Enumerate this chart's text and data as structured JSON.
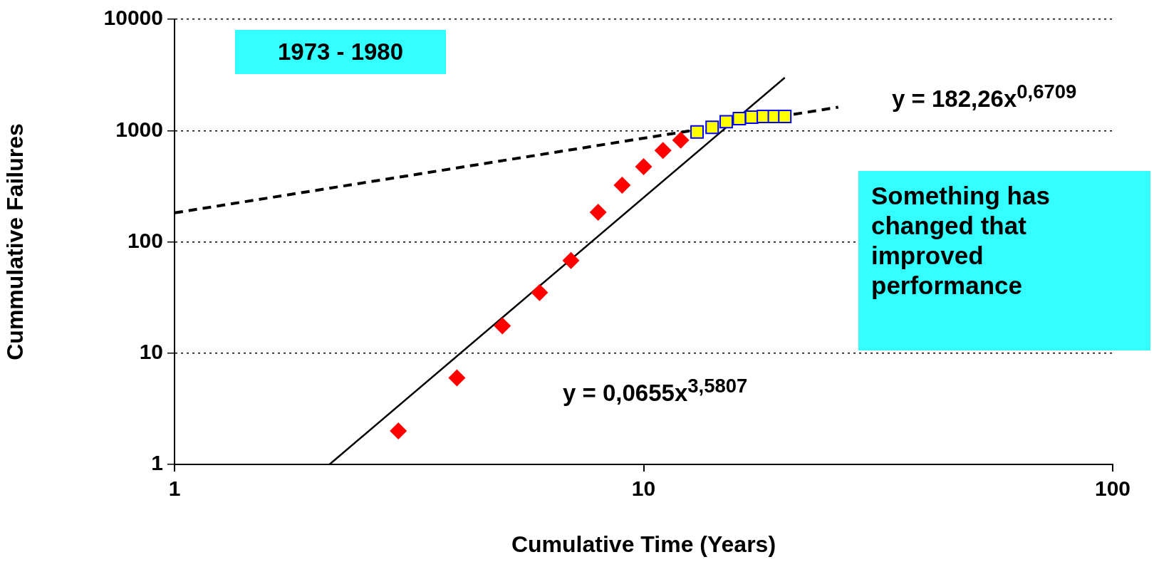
{
  "chart_data": {
    "type": "scatter",
    "xlabel": "Cumulative Time (Years)",
    "ylabel": "Cummulative Failures",
    "log": "xy",
    "xlim": [
      1,
      100
    ],
    "ylim": [
      1,
      10000
    ],
    "xticks": [
      1,
      10,
      100
    ],
    "yticks": [
      1,
      10,
      100,
      1000,
      10000
    ],
    "grid": "y",
    "legend": false,
    "series": [
      {
        "marker": "diamond",
        "color": "#ff0000",
        "x": [
          3,
          4,
          5,
          6,
          7,
          8,
          9,
          10,
          11,
          12
        ],
        "values": [
          2,
          6,
          17.6,
          35,
          68,
          184,
          323,
          473,
          662,
          820
        ]
      },
      {
        "marker": "square",
        "color": "#ffff00",
        "x": [
          13,
          14,
          15,
          16,
          17,
          18,
          19,
          20
        ],
        "values": [
          970,
          1070,
          1200,
          1280,
          1320,
          1340,
          1340,
          1340
        ]
      },
      {
        "type": "line",
        "marker": "none",
        "line_style": "solid",
        "color": "#000000",
        "x": [
          2.14,
          20
        ],
        "values": [
          1,
          2990
        ]
      },
      {
        "type": "line",
        "marker": "none",
        "line_style": "dashed",
        "color": "#000000",
        "x": [
          1,
          26
        ],
        "values": [
          182,
          1620
        ]
      }
    ],
    "annotations": [
      "1973 - 1980",
      "Something has changed that improved performance",
      "y = 182,26x$^{0,6709}$",
      "y = 0,0655x$^{3,5807}$"
    ]
  }
}
